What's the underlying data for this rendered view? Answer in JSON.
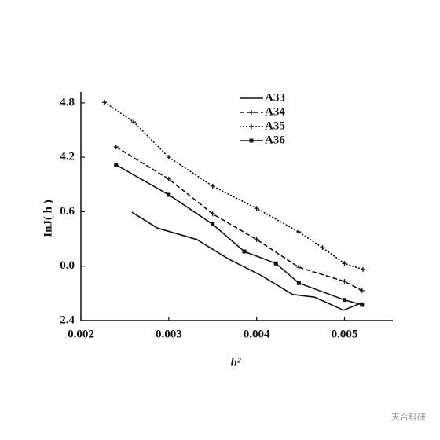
{
  "chart_data": {
    "type": "line",
    "xlabel": "h²",
    "ylabel": "InJ( h )",
    "xlim": [
      0.002,
      0.00555
    ],
    "xticks": [
      0.002,
      0.003,
      0.004,
      0.005
    ],
    "ylim": [
      0,
      4.2
    ],
    "yticks": [
      {
        "value": 0,
        "label": "2.4"
      },
      {
        "value": 1,
        "label": "0.0"
      },
      {
        "value": 2,
        "label": "0.6"
      },
      {
        "value": 3,
        "label": "4.2"
      },
      {
        "value": 4,
        "label": "4.8"
      }
    ],
    "series": [
      {
        "name": "A33",
        "color": "#111",
        "dash": "none",
        "marker": "none",
        "x": [
          0.00258,
          0.00287,
          0.00332,
          0.00368,
          0.00404,
          0.00441,
          0.00466,
          0.00499,
          0.0052
        ],
        "values": [
          1.99,
          1.7,
          1.49,
          1.13,
          0.84,
          0.48,
          0.43,
          0.19,
          0.33
        ]
      },
      {
        "name": "A34",
        "color": "#111",
        "dash": "6 3",
        "marker": "plus",
        "x": [
          0.0024,
          0.003,
          0.0035,
          0.004,
          0.00448,
          0.005,
          0.0052
        ],
        "values": [
          3.19,
          2.6,
          1.96,
          1.49,
          0.98,
          0.72,
          0.55
        ]
      },
      {
        "name": "A35",
        "color": "#111",
        "dash": "2 2",
        "marker": "plus",
        "x": [
          0.00227,
          0.0026,
          0.003,
          0.0035,
          0.004,
          0.00448,
          0.00475,
          0.005,
          0.00521
        ],
        "values": [
          4.01,
          3.65,
          3.0,
          2.47,
          2.06,
          1.63,
          1.34,
          1.05,
          0.94
        ]
      },
      {
        "name": "A36",
        "color": "#111",
        "dash": "none",
        "marker": "square",
        "x": [
          0.0024,
          0.003,
          0.0035,
          0.00386,
          0.00422,
          0.00448,
          0.005,
          0.0052
        ],
        "values": [
          2.86,
          2.31,
          1.77,
          1.27,
          1.05,
          0.69,
          0.38,
          0.29
        ]
      }
    ],
    "watermark": "天合科研"
  }
}
